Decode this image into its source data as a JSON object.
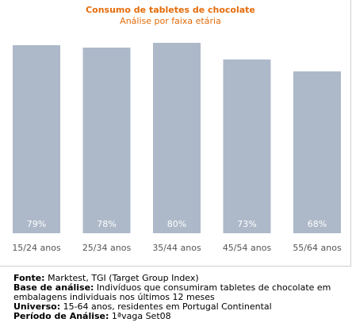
{
  "chart_data": {
    "type": "bar",
    "title": "Consumo de tabletes de chocolate",
    "subtitle": "Análise por faixa etária",
    "categories": [
      "15/24 anos",
      "25/34 anos",
      "35/44 anos",
      "45/54 anos",
      "55/64 anos"
    ],
    "values": [
      79,
      78,
      80,
      73,
      68
    ],
    "value_labels": [
      "79%",
      "78%",
      "80%",
      "73%",
      "68%"
    ],
    "unit": "%",
    "xlabel": "",
    "ylabel": "",
    "ylim": [
      0,
      100
    ],
    "grid": false,
    "legend": "none"
  },
  "colors": {
    "title": "#e46c0a",
    "bar": "#adb9c9",
    "bar_label": "#ffffff",
    "tick_label": "#555555"
  },
  "notes": {
    "fonte": {
      "key": "Fonte:",
      "text": " Marktest, TGI (Target Group Index)"
    },
    "base": {
      "key": "Base de análise:",
      "text": " Indivíduos que consumiram  tabletes de chocolate em",
      "cont": "embalagens individuais nos últimos 12 meses"
    },
    "universo": {
      "key": "Universo:",
      "text": " 15-64 anos, residentes em Portugal Continental"
    },
    "periodo": {
      "key": "Período de Análise:",
      "text": " 1ªvaga Set08"
    }
  }
}
